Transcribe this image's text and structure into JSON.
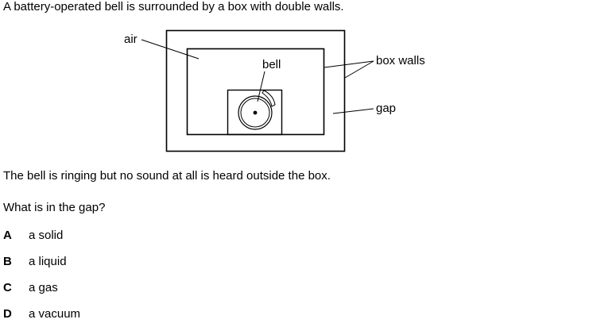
{
  "question": {
    "intro": "A battery-operated bell is surrounded by a box with double walls.",
    "statement": "The bell is ringing but no sound at all is heard outside the box.",
    "prompt": "What is in the gap?"
  },
  "diagram": {
    "labels": {
      "air": "air",
      "bell": "bell",
      "box_walls": "box walls",
      "gap": "gap"
    }
  },
  "options": [
    {
      "letter": "A",
      "text": "a solid"
    },
    {
      "letter": "B",
      "text": "a liquid"
    },
    {
      "letter": "C",
      "text": "a gas"
    },
    {
      "letter": "D",
      "text": "a vacuum"
    }
  ]
}
